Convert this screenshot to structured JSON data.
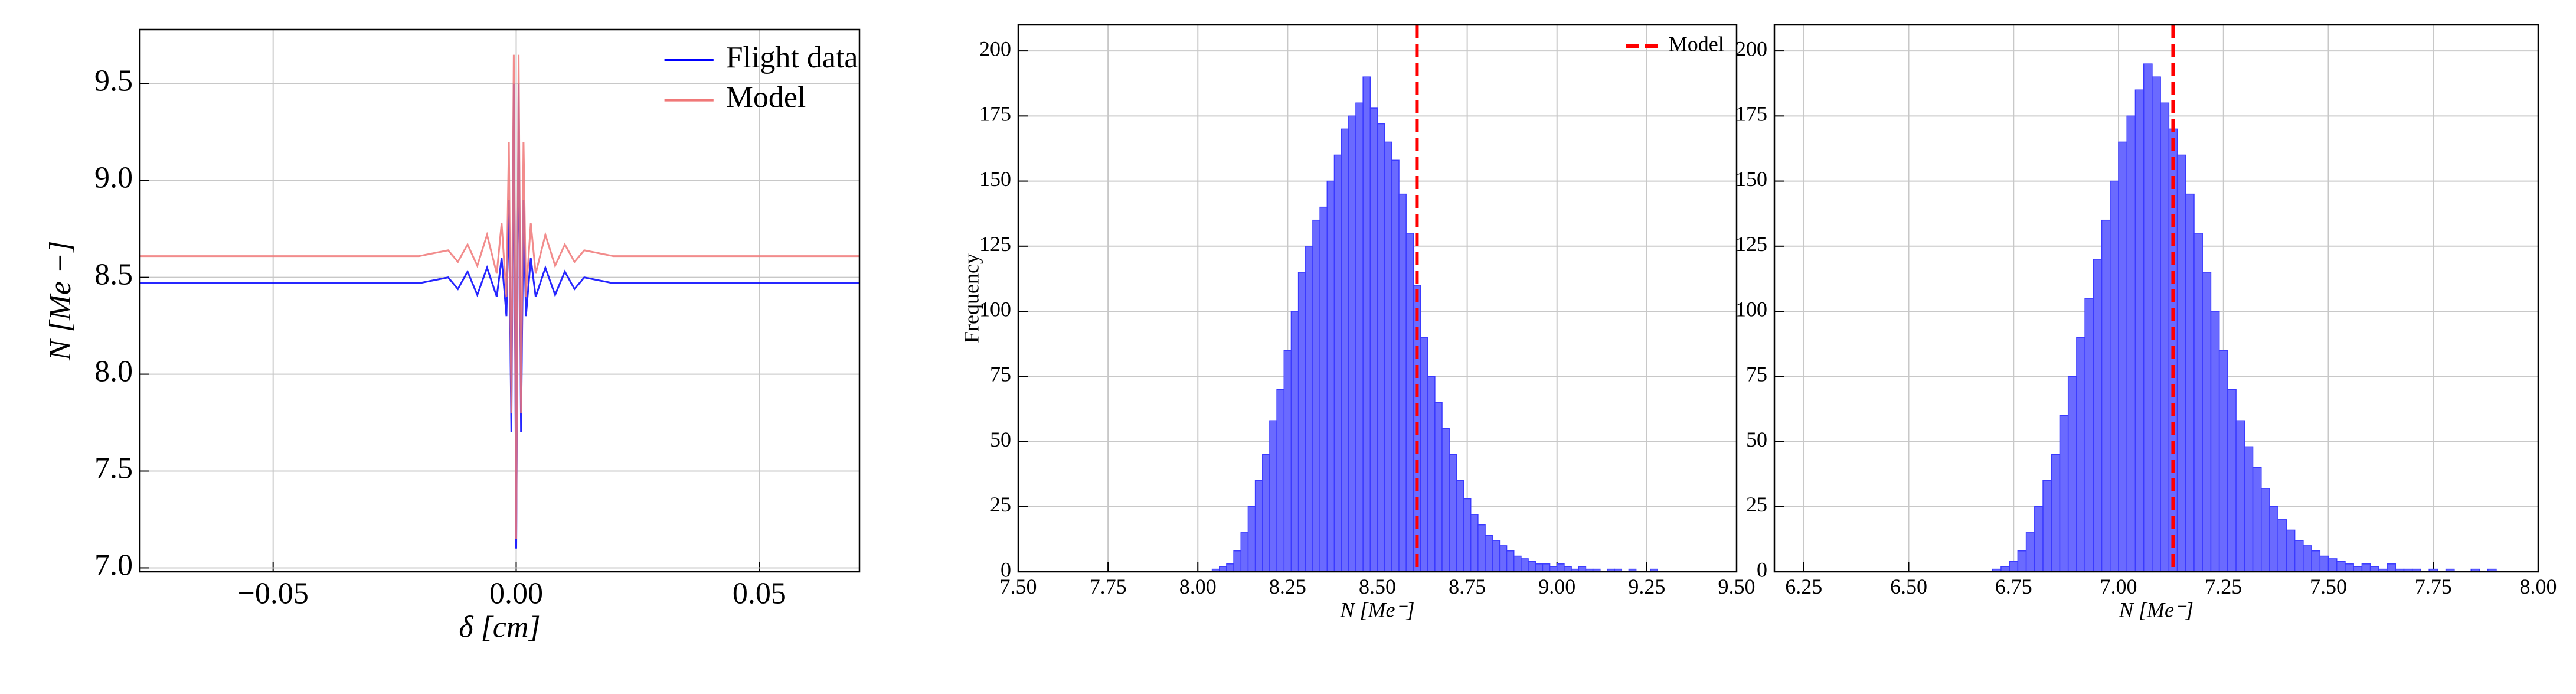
{
  "chart_data": [
    {
      "type": "line",
      "xlabel": "δ [cm]",
      "ylabel": "N [Me −]",
      "x": [
        -0.08,
        -0.04,
        -0.02,
        -0.014,
        -0.012,
        -0.01,
        -0.008,
        -0.006,
        -0.004,
        -0.003,
        -0.002,
        -0.0015,
        -0.001,
        -0.0005,
        0,
        0.0005,
        0.001,
        0.0015,
        0.002,
        0.003,
        0.004,
        0.006,
        0.008,
        0.01,
        0.012,
        0.014,
        0.02,
        0.04,
        0.08
      ],
      "series": [
        {
          "name": "Flight data",
          "color": "#0000ff",
          "values": [
            8.47,
            8.47,
            8.47,
            8.5,
            8.44,
            8.53,
            8.41,
            8.55,
            8.4,
            8.6,
            8.3,
            8.9,
            7.7,
            9.5,
            7.1,
            9.5,
            7.7,
            8.9,
            8.3,
            8.6,
            8.4,
            8.55,
            8.41,
            8.53,
            8.44,
            8.5,
            8.47,
            8.47,
            8.47
          ]
        },
        {
          "name": "Model",
          "color": "#f07878",
          "values": [
            8.61,
            8.61,
            8.61,
            8.64,
            8.58,
            8.67,
            8.56,
            8.72,
            8.52,
            8.78,
            8.4,
            9.2,
            7.8,
            9.65,
            7.15,
            9.65,
            7.8,
            9.2,
            8.4,
            8.78,
            8.52,
            8.72,
            8.56,
            8.67,
            8.58,
            8.64,
            8.61,
            8.61,
            8.61
          ]
        }
      ],
      "xlim": [
        -0.0774,
        0.0706
      ],
      "xticks": [
        {
          "value": -0.05,
          "label": "−0.05"
        },
        {
          "value": 0,
          "label": "0.00"
        },
        0.05
      ],
      "ylim": [
        6.98,
        9.78
      ],
      "yticks": [
        {
          "value": 7,
          "label": "7.0"
        },
        7.5,
        {
          "value": 8,
          "label": "8.0"
        },
        8.5,
        {
          "value": 9,
          "label": "9.0"
        },
        9.5
      ],
      "grid": true,
      "legend": "upper right"
    },
    {
      "type": "histogram",
      "xlabel": "N [Me⁻]",
      "ylabel": "Frequency",
      "color": "#6a6aff",
      "bins": [
        8.04,
        8.06,
        8.08,
        8.1,
        8.12,
        8.14,
        8.16,
        8.18,
        8.2,
        8.22,
        8.24,
        8.26,
        8.28,
        8.3,
        8.32,
        8.34,
        8.36,
        8.38,
        8.4,
        8.42,
        8.44,
        8.46,
        8.48,
        8.5,
        8.52,
        8.54,
        8.56,
        8.58,
        8.6,
        8.62,
        8.64,
        8.66,
        8.68,
        8.7,
        8.72,
        8.74,
        8.76,
        8.78,
        8.8,
        8.82,
        8.84,
        8.86,
        8.88,
        8.9,
        8.92,
        8.94,
        8.96,
        8.98,
        9,
        9.02,
        9.04,
        9.06,
        9.08,
        9.1,
        9.12,
        9.14,
        9.16,
        9.18,
        9.2,
        9.22,
        9.24,
        9.26,
        9.28,
        9.3
      ],
      "counts": [
        1,
        2,
        3,
        8,
        15,
        25,
        35,
        45,
        58,
        70,
        85,
        100,
        115,
        125,
        135,
        140,
        150,
        160,
        170,
        175,
        180,
        190,
        178,
        172,
        165,
        158,
        145,
        130,
        110,
        90,
        75,
        65,
        55,
        45,
        35,
        28,
        22,
        18,
        14,
        12,
        10,
        8,
        6,
        5,
        4,
        3,
        3,
        2,
        3,
        2,
        1,
        2,
        1,
        1,
        0,
        1,
        1,
        0,
        1,
        0,
        0,
        1,
        0
      ],
      "model_line": {
        "name": "Model",
        "value": 8.61,
        "color": "#ff0000"
      },
      "xlim": [
        7.5,
        9.5
      ],
      "xticks": [
        {
          "value": 7.5,
          "label": "7.50"
        },
        7.75,
        {
          "value": 8,
          "label": "8.00"
        },
        8.25,
        {
          "value": 8.5,
          "label": "8.50"
        },
        8.75,
        {
          "value": 9,
          "label": "9.00"
        },
        9.25,
        {
          "value": 9.5,
          "label": "9.50"
        }
      ],
      "ylim": [
        0,
        210
      ],
      "yticks": [
        0,
        25,
        50,
        75,
        100,
        125,
        150,
        175,
        200
      ],
      "grid": true,
      "legend": "upper right"
    },
    {
      "type": "histogram",
      "xlabel": "N [Me⁻]",
      "color": "#6a6aff",
      "bins": [
        6.7,
        6.72,
        6.74,
        6.76,
        6.78,
        6.8,
        6.82,
        6.84,
        6.86,
        6.88,
        6.9,
        6.92,
        6.94,
        6.96,
        6.98,
        7,
        7.02,
        7.04,
        7.06,
        7.08,
        7.1,
        7.12,
        7.14,
        7.16,
        7.18,
        7.2,
        7.22,
        7.24,
        7.26,
        7.28,
        7.3,
        7.32,
        7.34,
        7.36,
        7.38,
        7.4,
        7.42,
        7.44,
        7.46,
        7.48,
        7.5,
        7.52,
        7.54,
        7.56,
        7.58,
        7.6,
        7.62,
        7.64,
        7.66,
        7.68,
        7.7,
        7.72,
        7.74,
        7.76,
        7.78,
        7.8,
        7.82,
        7.84,
        7.86,
        7.88,
        7.9
      ],
      "counts": [
        1,
        2,
        4,
        8,
        15,
        25,
        35,
        45,
        60,
        75,
        90,
        105,
        120,
        135,
        150,
        165,
        175,
        185,
        195,
        190,
        180,
        170,
        160,
        145,
        130,
        115,
        100,
        85,
        70,
        58,
        48,
        40,
        32,
        25,
        20,
        16,
        12,
        10,
        8,
        6,
        5,
        4,
        3,
        2,
        3,
        2,
        1,
        3,
        1,
        1,
        1,
        0,
        1,
        0,
        1,
        0,
        0,
        1,
        0,
        1
      ],
      "model_line": {
        "value": 7.13,
        "color": "#ff0000"
      },
      "xlim": [
        6.18,
        8.0
      ],
      "xticks": [
        6.25,
        {
          "value": 6.5,
          "label": "6.50"
        },
        6.75,
        {
          "value": 7,
          "label": "7.00"
        },
        7.25,
        {
          "value": 7.5,
          "label": "7.50"
        },
        7.75,
        {
          "value": 8,
          "label": "8.00"
        }
      ],
      "ylim": [
        0,
        210
      ],
      "yticks": [
        0,
        25,
        50,
        75,
        100,
        125,
        150,
        175,
        200
      ],
      "grid": true
    }
  ]
}
